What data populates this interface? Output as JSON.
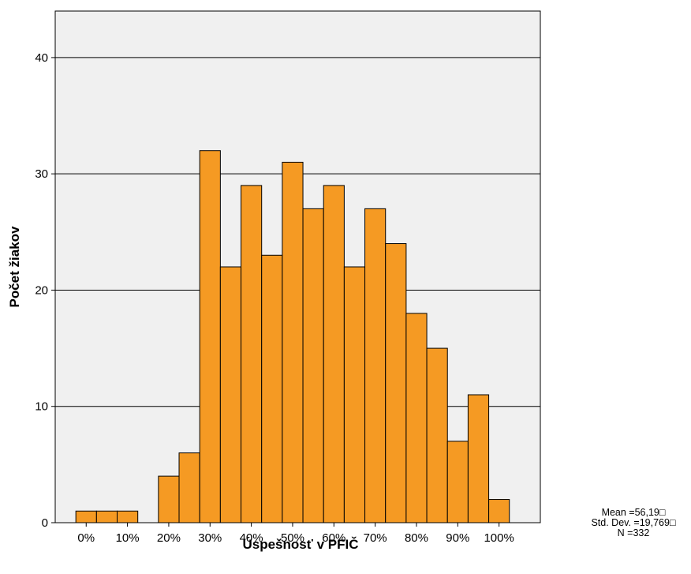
{
  "chart_data": {
    "type": "bar",
    "subtype": "histogram",
    "xlabel": "Úspešnosť v PFIČ",
    "ylabel": "Počet žiakov",
    "bin_width": 5,
    "bins": [
      {
        "start": -2.5,
        "value": 1
      },
      {
        "start": 2.5,
        "value": 1
      },
      {
        "start": 7.5,
        "value": 1
      },
      {
        "start": 12.5,
        "value": 0
      },
      {
        "start": 17.5,
        "value": 4
      },
      {
        "start": 22.5,
        "value": 6
      },
      {
        "start": 27.5,
        "value": 32
      },
      {
        "start": 32.5,
        "value": 22
      },
      {
        "start": 37.5,
        "value": 29
      },
      {
        "start": 42.5,
        "value": 23
      },
      {
        "start": 47.5,
        "value": 31
      },
      {
        "start": 52.5,
        "value": 27
      },
      {
        "start": 57.5,
        "value": 29
      },
      {
        "start": 62.5,
        "value": 22
      },
      {
        "start": 67.5,
        "value": 27
      },
      {
        "start": 72.5,
        "value": 24
      },
      {
        "start": 77.5,
        "value": 18
      },
      {
        "start": 82.5,
        "value": 15
      },
      {
        "start": 87.5,
        "value": 7
      },
      {
        "start": 92.5,
        "value": 11
      },
      {
        "start": 97.5,
        "value": 2
      }
    ],
    "x_ticks": [
      {
        "value": 0,
        "label": "0%"
      },
      {
        "value": 10,
        "label": "10%"
      },
      {
        "value": 20,
        "label": "20%"
      },
      {
        "value": 30,
        "label": "30%"
      },
      {
        "value": 40,
        "label": "40%"
      },
      {
        "value": 50,
        "label": "50%"
      },
      {
        "value": 60,
        "label": "60%"
      },
      {
        "value": 70,
        "label": "70%"
      },
      {
        "value": 80,
        "label": "80%"
      },
      {
        "value": 90,
        "label": "90%"
      },
      {
        "value": 100,
        "label": "100%"
      }
    ],
    "y_ticks": [
      0,
      10,
      20,
      30,
      40
    ],
    "ylim": [
      0,
      44
    ],
    "xlim": [
      -7.5,
      110
    ],
    "grid": true,
    "colors": {
      "bar": "#f59a23",
      "bar_stroke": "#000000",
      "plot_background": "#f0f0f0",
      "grid": "#000000"
    },
    "stats": {
      "mean": "Mean =56,19□",
      "std_dev": "Std. Dev. =19,769□",
      "n": "N =332"
    }
  }
}
